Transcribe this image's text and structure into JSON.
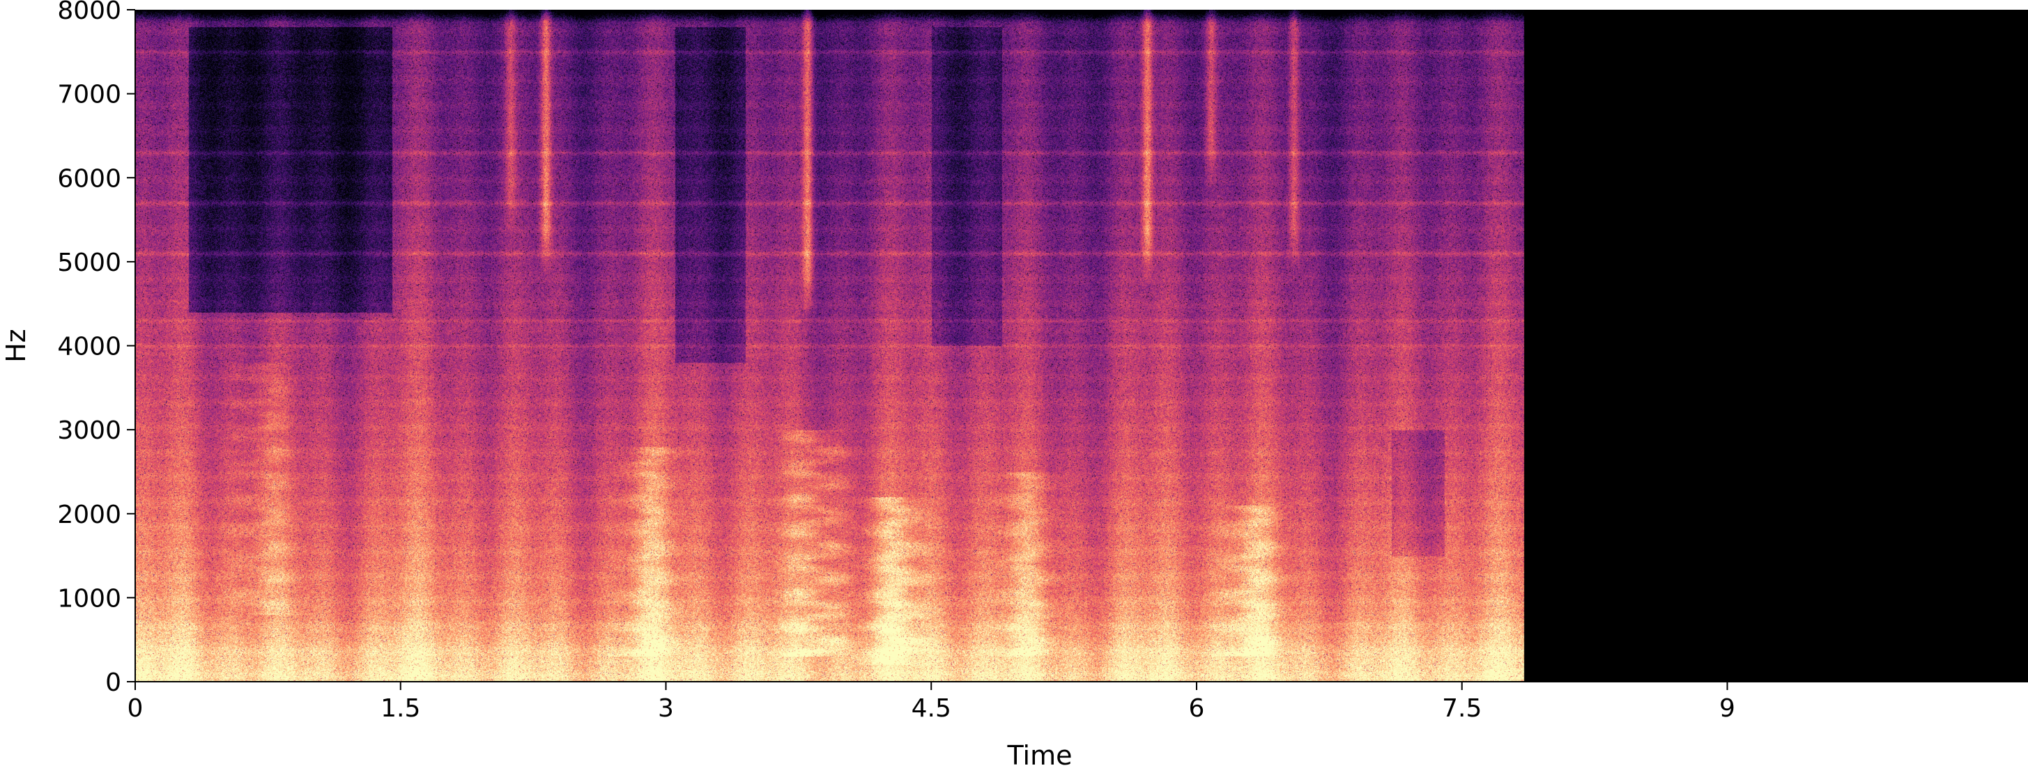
{
  "chart_data": {
    "type": "heatmap",
    "subtype": "spectrogram",
    "title": "",
    "xlabel": "Time",
    "ylabel": "Hz",
    "xlim": [
      0,
      10.7
    ],
    "ylim": [
      0,
      8000
    ],
    "x_ticks": [
      0,
      1.5,
      3,
      4.5,
      6,
      7.5,
      9
    ],
    "x_tick_labels": [
      "0",
      "1.5",
      "3",
      "4.5",
      "6",
      "7.5",
      "9"
    ],
    "y_ticks": [
      0,
      1000,
      2000,
      3000,
      4000,
      5000,
      6000,
      7000,
      8000
    ],
    "y_tick_labels": [
      "0",
      "1000",
      "2000",
      "3000",
      "4000",
      "5000",
      "6000",
      "7000",
      "8000"
    ],
    "signal_end_time": 7.85,
    "colormap": "magma",
    "colormap_stops": [
      "#000004",
      "#1c1044",
      "#4f127b",
      "#812581",
      "#b5367a",
      "#e55064",
      "#fb8761",
      "#fec287",
      "#fcfdbf"
    ],
    "grid": false,
    "legend": "none",
    "features": {
      "low_band_energy": 0.85,
      "high_band_energy": 0.3,
      "high_freq_rolloff_hz": 7850,
      "vertical_streaks": [
        {
          "time": 2.32,
          "from_hz": 5000,
          "to_hz": 8000,
          "intensity": 0.8
        },
        {
          "time": 3.8,
          "from_hz": 4500,
          "to_hz": 8000,
          "intensity": 0.85
        },
        {
          "time": 5.72,
          "from_hz": 4900,
          "to_hz": 8000,
          "intensity": 0.8
        },
        {
          "time": 6.08,
          "from_hz": 6000,
          "to_hz": 8000,
          "intensity": 0.55
        },
        {
          "time": 6.55,
          "from_hz": 5000,
          "to_hz": 8000,
          "intensity": 0.6
        },
        {
          "time": 2.12,
          "from_hz": 5500,
          "to_hz": 8000,
          "intensity": 0.45
        }
      ],
      "harmonic_bursts": [
        {
          "time": 3.85,
          "from_hz": 300,
          "to_hz": 3000,
          "intensity": 0.95
        },
        {
          "time": 4.3,
          "from_hz": 200,
          "to_hz": 2200,
          "intensity": 0.85
        },
        {
          "time": 6.3,
          "from_hz": 300,
          "to_hz": 2100,
          "intensity": 0.8
        },
        {
          "time": 0.72,
          "from_hz": 800,
          "to_hz": 3800,
          "intensity": 0.55
        },
        {
          "time": 2.9,
          "from_hz": 300,
          "to_hz": 2800,
          "intensity": 0.6
        },
        {
          "time": 5.05,
          "from_hz": 300,
          "to_hz": 2500,
          "intensity": 0.55
        }
      ],
      "dark_regions": [
        {
          "t0": 0.3,
          "t1": 1.45,
          "f0": 4400,
          "f1": 7800,
          "depth": 0.45
        },
        {
          "t0": 3.05,
          "t1": 3.45,
          "f0": 3800,
          "f1": 7800,
          "depth": 0.35
        },
        {
          "t0": 4.5,
          "t1": 4.9,
          "f0": 4000,
          "f1": 7800,
          "depth": 0.3
        },
        {
          "t0": 7.1,
          "t1": 7.4,
          "f0": 1500,
          "f1": 3000,
          "depth": 0.25
        }
      ],
      "horizontal_lines_hz": [
        4000,
        4300,
        5100,
        5700,
        6300,
        7500
      ]
    }
  }
}
